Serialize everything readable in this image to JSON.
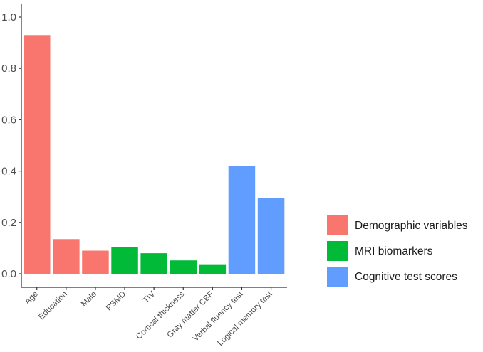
{
  "chart_data": {
    "type": "bar",
    "categories": [
      "Age",
      "Education",
      "Male",
      "PSMD",
      "TIV",
      "Cortical thickness",
      "Gray matter CBF",
      "Verbal fluency test",
      "Logical memory test"
    ],
    "values": [
      0.93,
      0.135,
      0.09,
      0.103,
      0.08,
      0.052,
      0.037,
      0.42,
      0.295
    ],
    "groups": [
      "Demographic variables",
      "Demographic variables",
      "Demographic variables",
      "MRI biomarkers",
      "MRI biomarkers",
      "MRI biomarkers",
      "MRI biomarkers",
      "Cognitive test scores",
      "Cognitive test scores"
    ],
    "legend": [
      {
        "name": "Demographic variables",
        "color": "#F8766D"
      },
      {
        "name": "MRI biomarkers",
        "color": "#00BA38"
      },
      {
        "name": "Cognitive test scores",
        "color": "#619CFF"
      }
    ],
    "ylim": [
      0,
      1.0
    ],
    "yticks": [
      0.0,
      0.2,
      0.4,
      0.6,
      0.8,
      1.0
    ],
    "ytick_labels": [
      "0.0",
      "0.2",
      "0.4",
      "0.6",
      "0.8",
      "1.0"
    ],
    "grid": false,
    "legend_position": "right"
  }
}
